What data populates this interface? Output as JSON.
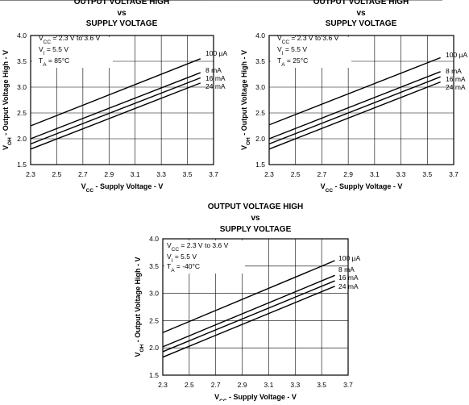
{
  "chart_data": [
    {
      "type": "line",
      "title": [
        "OUTPUT VOLTAGE HIGH",
        "vs",
        "SUPPLY VOLTAGE"
      ],
      "xlabel": {
        "pre": "V",
        "sub": "CC",
        "post": " - Supply Voltage - V"
      },
      "ylabel": {
        "pre": "V",
        "sub": "OH",
        "post": " - Output Voltage High - V"
      },
      "xlim": [
        2.3,
        3.7
      ],
      "ylim": [
        1.5,
        4.0
      ],
      "xticks": [
        "2.3",
        "2.5",
        "2.7",
        "2.9",
        "3.1",
        "3.3",
        "3.5",
        "3.7"
      ],
      "yticks": [
        "1.5",
        "2.0",
        "2.5",
        "3.0",
        "3.5",
        "4.0"
      ],
      "grid": true,
      "conditions": [
        {
          "pre": "V",
          "sub": "CC",
          "post": " = 2.3 V to 3.6 V"
        },
        {
          "pre": "V",
          "sub": "I",
          "post": " = 5.5 V"
        },
        {
          "pre": "T",
          "sub": "A",
          "post": " = 85°C"
        }
      ],
      "series": [
        {
          "name": "100 µA",
          "x": [
            2.3,
            3.6
          ],
          "y": [
            2.25,
            3.55
          ]
        },
        {
          "name": "8 mA",
          "x": [
            2.3,
            3.6
          ],
          "y": [
            2.0,
            3.28
          ]
        },
        {
          "name": "16 mA",
          "x": [
            2.3,
            3.6
          ],
          "y": [
            1.9,
            3.18
          ]
        },
        {
          "name": "24 mA",
          "x": [
            2.3,
            3.6
          ],
          "y": [
            1.8,
            3.08
          ]
        }
      ]
    },
    {
      "type": "line",
      "title": [
        "OUTPUT VOLTAGE HIGH",
        "vs",
        "SUPPLY VOLTAGE"
      ],
      "xlabel": {
        "pre": "V",
        "sub": "CC",
        "post": " - Supply Voltage - V"
      },
      "ylabel": {
        "pre": "V",
        "sub": "OH",
        "post": " - Output Voltage High - V"
      },
      "xlim": [
        2.3,
        3.7
      ],
      "ylim": [
        1.5,
        4.0
      ],
      "xticks": [
        "2.3",
        "2.5",
        "2.7",
        "2.9",
        "3.1",
        "3.3",
        "3.5",
        "3.7"
      ],
      "yticks": [
        "1.5",
        "2.0",
        "2.5",
        "3.0",
        "3.5",
        "4.0"
      ],
      "grid": true,
      "conditions": [
        {
          "pre": "V",
          "sub": "CC",
          "post": " = 2.3 V to 3.6 V"
        },
        {
          "pre": "V",
          "sub": "I",
          "post": " = 5.5 V"
        },
        {
          "pre": "T",
          "sub": "A",
          "post": " = 25°C"
        }
      ],
      "series": [
        {
          "name": "100 µA",
          "x": [
            2.3,
            3.6
          ],
          "y": [
            2.27,
            3.57
          ]
        },
        {
          "name": "8 mA",
          "x": [
            2.3,
            3.6
          ],
          "y": [
            2.0,
            3.3
          ]
        },
        {
          "name": "16 mA",
          "x": [
            2.3,
            3.6
          ],
          "y": [
            1.9,
            3.2
          ]
        },
        {
          "name": "24 mA",
          "x": [
            2.3,
            3.6
          ],
          "y": [
            1.8,
            3.1
          ]
        }
      ]
    },
    {
      "type": "line",
      "title": [
        "OUTPUT VOLTAGE HIGH",
        "vs",
        "SUPPLY VOLTAGE"
      ],
      "xlabel": {
        "pre": "V",
        "sub": "CC",
        "post": " - Supply Voltage - V"
      },
      "ylabel": {
        "pre": "V",
        "sub": "OH",
        "post": " - Output Voltage High - V"
      },
      "xlim": [
        2.3,
        3.7
      ],
      "ylim": [
        1.5,
        4.0
      ],
      "xticks": [
        "2.3",
        "2.5",
        "2.7",
        "2.9",
        "3.1",
        "3.3",
        "3.5",
        "3.7"
      ],
      "yticks": [
        "1.5",
        "2.0",
        "2.5",
        "3.0",
        "3.5",
        "4.0"
      ],
      "grid": true,
      "conditions": [
        {
          "pre": "V",
          "sub": "CC",
          "post": " = 2.3 V to 3.6 V"
        },
        {
          "pre": "V",
          "sub": "I",
          "post": " = 5.5 V"
        },
        {
          "pre": "T",
          "sub": "A",
          "post": " = -40°C"
        }
      ],
      "series": [
        {
          "name": "100 µA",
          "x": [
            2.3,
            3.6
          ],
          "y": [
            2.28,
            3.6
          ]
        },
        {
          "name": "8 mA",
          "x": [
            2.3,
            3.6
          ],
          "y": [
            2.02,
            3.33
          ]
        },
        {
          "name": "16 mA",
          "x": [
            2.3,
            3.6
          ],
          "y": [
            1.93,
            3.23
          ]
        },
        {
          "name": "24 mA",
          "x": [
            2.3,
            3.6
          ],
          "y": [
            1.83,
            3.13
          ]
        }
      ]
    }
  ]
}
